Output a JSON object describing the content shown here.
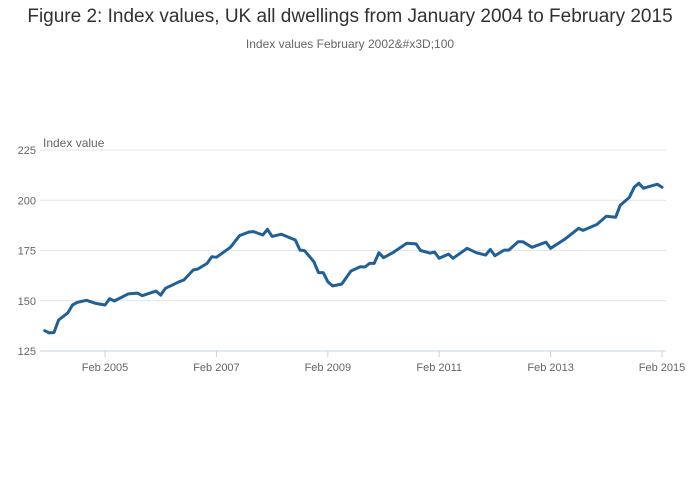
{
  "chart_data": {
    "type": "line",
    "title": "Figure 2: Index values, UK all dwellings from January 2004 to February 2015",
    "subtitle": "Index values February 2002&#x3D;100",
    "ylabel": "Index value",
    "xlabel": "",
    "ylim": [
      125,
      225
    ],
    "yticks": [
      125,
      150,
      175,
      200,
      225
    ],
    "xticks": [
      {
        "date": "2005-02",
        "label": "Feb 2005"
      },
      {
        "date": "2007-02",
        "label": "Feb 2007"
      },
      {
        "date": "2009-02",
        "label": "Feb 2009"
      },
      {
        "date": "2011-02",
        "label": "Feb 2011"
      },
      {
        "date": "2013-02",
        "label": "Feb 2013"
      },
      {
        "date": "2015-02",
        "label": "Feb 2015"
      }
    ],
    "xlim": [
      "2004-01",
      "2015-02"
    ],
    "grid": true,
    "series": [
      {
        "name": "UK all dwellings",
        "color": "#206095",
        "points": [
          [
            "2004-01",
            135.1
          ],
          [
            "2004-02",
            134
          ],
          [
            "2004-03",
            134.2
          ],
          [
            "2004-04",
            140.4
          ],
          [
            "2004-06",
            144
          ],
          [
            "2004-07",
            147.9
          ],
          [
            "2004-08",
            149.2
          ],
          [
            "2004-10",
            150.2
          ],
          [
            "2004-12",
            148.7
          ],
          [
            "2005-02",
            147.9
          ],
          [
            "2005-03",
            151
          ],
          [
            "2005-04",
            149.9
          ],
          [
            "2005-07",
            153.4
          ],
          [
            "2005-09",
            153.8
          ],
          [
            "2005-10",
            152.5
          ],
          [
            "2006-01",
            154.8
          ],
          [
            "2006-02",
            152.8
          ],
          [
            "2006-03",
            156.2
          ],
          [
            "2006-06",
            159.5
          ],
          [
            "2006-07",
            160.3
          ],
          [
            "2006-09",
            165.3
          ],
          [
            "2006-10",
            165.8
          ],
          [
            "2006-12",
            168.6
          ],
          [
            "2007-01",
            171.9
          ],
          [
            "2007-02",
            171.6
          ],
          [
            "2007-05",
            176.6
          ],
          [
            "2007-07",
            182.4
          ],
          [
            "2007-09",
            184.2
          ],
          [
            "2007-10",
            184.4
          ],
          [
            "2007-12",
            182.7
          ],
          [
            "2008-01",
            185.5
          ],
          [
            "2008-02",
            182
          ],
          [
            "2008-04",
            183.1
          ],
          [
            "2008-07",
            180.2
          ],
          [
            "2008-08",
            175.2
          ],
          [
            "2008-09",
            174.9
          ],
          [
            "2008-11",
            169.4
          ],
          [
            "2008-12",
            164
          ],
          [
            "2009-01",
            164
          ],
          [
            "2009-02",
            159.5
          ],
          [
            "2009-03",
            157.4
          ],
          [
            "2009-05",
            158.3
          ],
          [
            "2009-07",
            164.8
          ],
          [
            "2009-09",
            166.9
          ],
          [
            "2009-10",
            166.8
          ],
          [
            "2009-11",
            168.6
          ],
          [
            "2009-12",
            168.6
          ],
          [
            "2010-01",
            173.9
          ],
          [
            "2010-02",
            171.4
          ],
          [
            "2010-04",
            173.9
          ],
          [
            "2010-07",
            178.6
          ],
          [
            "2010-09",
            178.3
          ],
          [
            "2010-10",
            175
          ],
          [
            "2010-12",
            173.7
          ],
          [
            "2011-01",
            174.2
          ],
          [
            "2011-02",
            171.1
          ],
          [
            "2011-04",
            173.2
          ],
          [
            "2011-05",
            171.1
          ],
          [
            "2011-08",
            176.1
          ],
          [
            "2011-10",
            173.9
          ],
          [
            "2011-12",
            172.7
          ],
          [
            "2012-01",
            175.5
          ],
          [
            "2012-02",
            172.4
          ],
          [
            "2012-04",
            175.2
          ],
          [
            "2012-05",
            175.2
          ],
          [
            "2012-07",
            179.4
          ],
          [
            "2012-08",
            179.4
          ],
          [
            "2012-10",
            176.6
          ],
          [
            "2013-01",
            179.2
          ],
          [
            "2013-02",
            176.1
          ],
          [
            "2013-05",
            180.5
          ],
          [
            "2013-08",
            186
          ],
          [
            "2013-09",
            185
          ],
          [
            "2013-12",
            188
          ],
          [
            "2014-02",
            192
          ],
          [
            "2014-04",
            191.5
          ],
          [
            "2014-05",
            197.5
          ],
          [
            "2014-07",
            201.5
          ],
          [
            "2014-08",
            206.5
          ],
          [
            "2014-09",
            208.5
          ],
          [
            "2014-10",
            206
          ],
          [
            "2015-01",
            208
          ],
          [
            "2015-02",
            206.5
          ]
        ]
      }
    ]
  }
}
